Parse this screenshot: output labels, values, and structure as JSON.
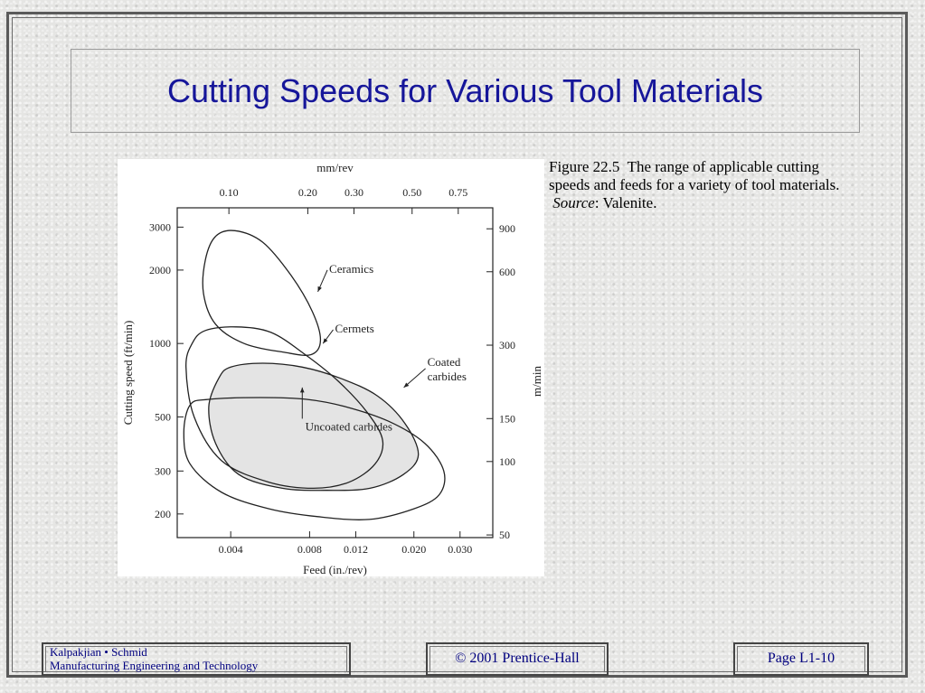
{
  "slide": {
    "title": "Cutting Speeds for Various Tool Materials"
  },
  "caption": {
    "figure_ref": "Figure 22.5",
    "text": "The range of applicable cutting speeds and feeds for a variety of tool materials.",
    "source_label": "Source",
    "source_value": ": Valenite."
  },
  "footer": {
    "authors": "Kalpakjian • Schmid",
    "book": "Manufacturing Engineering and Technology",
    "copyright": "© 2001 Prentice-Hall",
    "page": "Page L1-10"
  },
  "chart_data": {
    "type": "area",
    "scale": "log-log",
    "xlabel": "Feed   (in./rev)",
    "ylabel": "Cutting   speed   (ft/min)",
    "x2label": "mm/rev",
    "y2label": "m/min",
    "xlim": [
      0.0025,
      0.04
    ],
    "ylim": [
      160,
      3600
    ],
    "x_ticks": [
      0.004,
      0.008,
      0.012,
      0.02,
      0.03
    ],
    "x_tick_labels": [
      "0.004",
      "0.008",
      "0.012",
      "0.020",
      "0.030"
    ],
    "y_ticks": [
      200,
      300,
      500,
      1000,
      2000,
      3000
    ],
    "y_tick_labels": [
      "200",
      "300",
      "500",
      "1000",
      "2000",
      "3000"
    ],
    "x2_ticks": [
      0.1,
      0.2,
      0.3,
      0.5,
      0.75
    ],
    "x2_tick_labels": [
      "0.10",
      "0.20",
      "0.30",
      "0.50",
      "0.75"
    ],
    "y2_ticks": [
      50,
      100,
      150,
      300,
      600,
      900
    ],
    "y2_tick_labels": [
      "50",
      "100",
      "150",
      "300",
      "600",
      "900"
    ],
    "series": [
      {
        "name": "Ceramics",
        "label_lines": [
          "Ceramics"
        ],
        "fill": "none",
        "label_at": [
          0.0095,
          1950
        ],
        "arrow_to": [
          0.0086,
          1630
        ],
        "boundary": [
          [
            0.0035,
            2750
          ],
          [
            0.00415,
            2900
          ],
          [
            0.0053,
            2600
          ],
          [
            0.0068,
            1900
          ],
          [
            0.0082,
            1350
          ],
          [
            0.0088,
            1030
          ],
          [
            0.0081,
            900
          ],
          [
            0.0064,
            920
          ],
          [
            0.0045,
            1000
          ],
          [
            0.0035,
            1200
          ],
          [
            0.00315,
            1600
          ],
          [
            0.0032,
            2200
          ]
        ]
      },
      {
        "name": "Cermets",
        "label_lines": [
          "Cermets"
        ],
        "fill": "none",
        "label_at": [
          0.01,
          1110
        ],
        "arrow_to": [
          0.009,
          1000
        ],
        "boundary": [
          [
            0.00285,
            1000
          ],
          [
            0.0032,
            1130
          ],
          [
            0.0042,
            1170
          ],
          [
            0.0057,
            1110
          ],
          [
            0.0077,
            900
          ],
          [
            0.0103,
            700
          ],
          [
            0.0133,
            520
          ],
          [
            0.0152,
            400
          ],
          [
            0.0142,
            320
          ],
          [
            0.0113,
            270
          ],
          [
            0.0083,
            255
          ],
          [
            0.0056,
            270
          ],
          [
            0.0037,
            330
          ],
          [
            0.0029,
            500
          ],
          [
            0.0027,
            800
          ]
        ]
      },
      {
        "name": "Coated carbides",
        "label_lines": [
          "Coated",
          "carbides"
        ],
        "fill": "#e4e4e4",
        "label_at": [
          0.0225,
          810
        ],
        "arrow_to": [
          0.0183,
          660
        ],
        "boundary": [
          [
            0.0036,
            720
          ],
          [
            0.004,
            800
          ],
          [
            0.0053,
            830
          ],
          [
            0.0075,
            800
          ],
          [
            0.0105,
            720
          ],
          [
            0.0145,
            610
          ],
          [
            0.0185,
            470
          ],
          [
            0.0208,
            350
          ],
          [
            0.0182,
            290
          ],
          [
            0.0136,
            255
          ],
          [
            0.0093,
            250
          ],
          [
            0.0063,
            255
          ],
          [
            0.0043,
            290
          ],
          [
            0.0035,
            390
          ],
          [
            0.0033,
            550
          ]
        ]
      },
      {
        "name": "Uncoated carbides",
        "label_lines": [
          "Uncoated   carbides"
        ],
        "fill": "none",
        "label_at": [
          0.0077,
          440
        ],
        "arrow_to": [
          0.0075,
          660
        ],
        "boundary": [
          [
            0.0028,
            560
          ],
          [
            0.0033,
            590
          ],
          [
            0.0052,
            600
          ],
          [
            0.0078,
            590
          ],
          [
            0.011,
            550
          ],
          [
            0.016,
            480
          ],
          [
            0.022,
            390
          ],
          [
            0.026,
            300
          ],
          [
            0.025,
            240
          ],
          [
            0.02,
            210
          ],
          [
            0.0135,
            190
          ],
          [
            0.0086,
            195
          ],
          [
            0.0056,
            210
          ],
          [
            0.0037,
            245
          ],
          [
            0.0028,
            320
          ],
          [
            0.00265,
            430
          ]
        ]
      }
    ]
  }
}
